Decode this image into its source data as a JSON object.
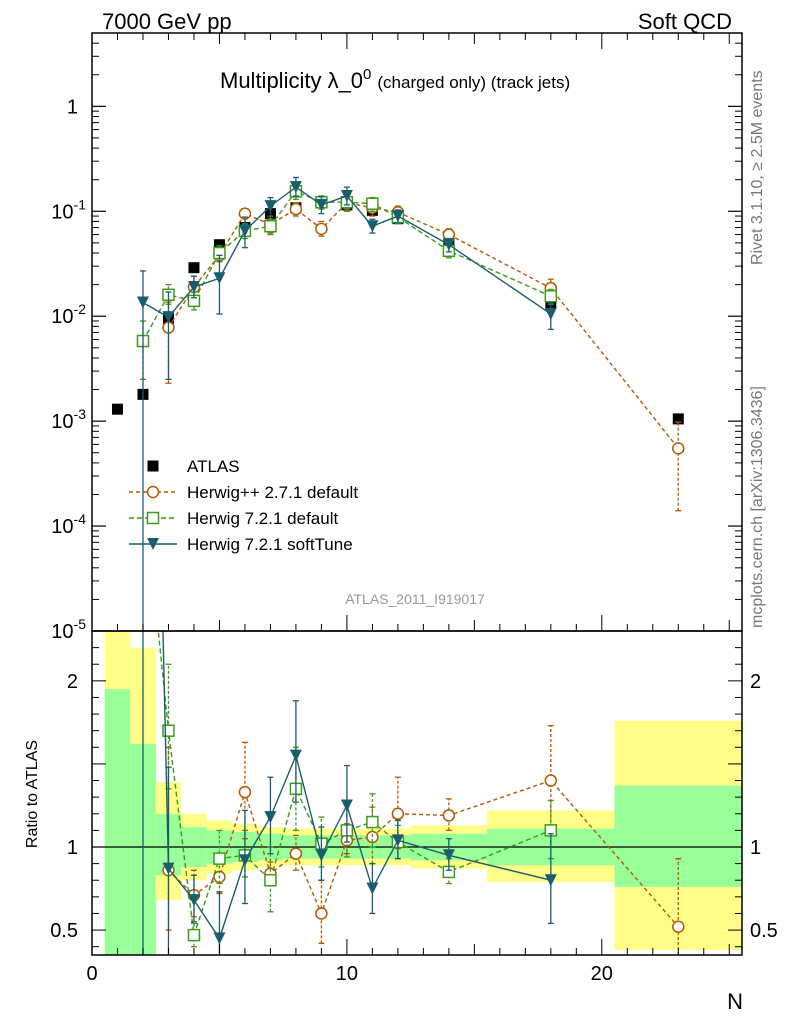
{
  "header": {
    "left": "7000 GeV pp",
    "right": "Soft QCD"
  },
  "title": {
    "main": "Multiplicity λ_0",
    "superscript": "0",
    "suffix": "(charged only) (track jets)"
  },
  "side_labels": {
    "rivet": "Rivet 3.1.10, ≥ 2.5M events",
    "mcplots": "mcplots.cern.ch [arXiv:1306.3436]"
  },
  "watermark": "ATLAS_2011_I919017",
  "x_axis_label": "N",
  "ratio_axis_label": "Ratio to ATLAS",
  "colors": {
    "data": "#000000",
    "herwigpp": "#b35900",
    "herwig721": "#3d9a1a",
    "softtune": "#1a5e6e",
    "band_inner": "#99ff99",
    "band_outer": "#ffff88"
  },
  "chart_data": {
    "type": "scatter",
    "main": {
      "ylog": true,
      "ylim": [
        1e-05,
        5
      ],
      "y_ticks": [
        "10^-5",
        "10^-4",
        "10^-3",
        "10^-2",
        "10^-1",
        "1"
      ],
      "xlim": [
        0,
        25.5
      ]
    },
    "ratio": {
      "ylim": [
        0.35,
        2.3
      ],
      "y_ticks": [
        "0.5",
        "1",
        "2"
      ]
    },
    "x_ticks": [
      "0",
      "10",
      "20"
    ],
    "series": [
      {
        "name": "ATLAS",
        "style": "data",
        "points": [
          {
            "x": 1,
            "y": 0.0013
          },
          {
            "x": 2,
            "y": 0.0018
          },
          {
            "x": 3,
            "y": 0.0095
          },
          {
            "x": 4,
            "y": 0.029
          },
          {
            "x": 5,
            "y": 0.048
          },
          {
            "x": 6,
            "y": 0.07
          },
          {
            "x": 7,
            "y": 0.095
          },
          {
            "x": 8,
            "y": 0.108
          },
          {
            "x": 9,
            "y": 0.12
          },
          {
            "x": 10,
            "y": 0.115
          },
          {
            "x": 11,
            "y": 0.102
          },
          {
            "x": 12,
            "y": 0.085
          },
          {
            "x": 14,
            "y": 0.05
          },
          {
            "x": 18,
            "y": 0.0135
          },
          {
            "x": 23,
            "y": 0.00105
          }
        ]
      },
      {
        "name": "Herwig++ 2.7.1 default",
        "style": "circle",
        "points": [
          {
            "x": 3,
            "y": 0.0078,
            "lo": 0.0023,
            "hi": 0.0136
          },
          {
            "x": 4,
            "y": 0.019,
            "lo": 0.015,
            "hi": 0.024
          },
          {
            "x": 5,
            "y": 0.038,
            "lo": 0.033,
            "hi": 0.045
          },
          {
            "x": 6,
            "y": 0.095,
            "lo": 0.085,
            "hi": 0.105
          },
          {
            "x": 7,
            "y": 0.075,
            "lo": 0.06,
            "hi": 0.09
          },
          {
            "x": 8,
            "y": 0.105,
            "lo": 0.09,
            "hi": 0.12
          },
          {
            "x": 9,
            "y": 0.068,
            "lo": 0.058,
            "hi": 0.08
          },
          {
            "x": 10,
            "y": 0.12,
            "lo": 0.1,
            "hi": 0.145
          },
          {
            "x": 11,
            "y": 0.108,
            "lo": 0.09,
            "hi": 0.125
          },
          {
            "x": 12,
            "y": 0.098,
            "lo": 0.085,
            "hi": 0.112
          },
          {
            "x": 14,
            "y": 0.06,
            "lo": 0.052,
            "hi": 0.068
          },
          {
            "x": 18,
            "y": 0.0185,
            "lo": 0.015,
            "hi": 0.0225
          },
          {
            "x": 23,
            "y": 0.00055,
            "lo": 0.00014,
            "hi": 0.00098
          }
        ],
        "ratio": [
          {
            "x": 3,
            "y": 0.86,
            "lo": 0.5,
            "hi": 1.6
          },
          {
            "x": 4,
            "y": 0.71,
            "lo": 0.58,
            "hi": 0.86
          },
          {
            "x": 5,
            "y": 0.82,
            "lo": 0.72,
            "hi": 0.95
          },
          {
            "x": 6,
            "y": 1.33,
            "lo": 1.05,
            "hi": 1.63
          },
          {
            "x": 7,
            "y": 0.84,
            "lo": 0.78,
            "hi": 0.91
          },
          {
            "x": 8,
            "y": 0.96,
            "lo": 0.86,
            "hi": 1.07
          },
          {
            "x": 9,
            "y": 0.6,
            "lo": 0.42,
            "hi": 0.8
          },
          {
            "x": 10,
            "y": 1.04,
            "lo": 0.96,
            "hi": 1.14
          },
          {
            "x": 11,
            "y": 1.06,
            "lo": 0.9,
            "hi": 1.24
          },
          {
            "x": 12,
            "y": 1.2,
            "lo": 0.99,
            "hi": 1.42
          },
          {
            "x": 14,
            "y": 1.19,
            "lo": 1.1,
            "hi": 1.29
          },
          {
            "x": 18,
            "y": 1.4,
            "lo": 1.12,
            "hi": 1.73
          },
          {
            "x": 23,
            "y": 0.52,
            "lo": 0.23,
            "hi": 0.93
          }
        ]
      },
      {
        "name": "Herwig 7.2.1 default",
        "style": "square",
        "points": [
          {
            "x": 2,
            "y": 0.0058,
            "lo": 0.0025,
            "hi": 0.009
          },
          {
            "x": 3,
            "y": 0.016,
            "lo": 0.013,
            "hi": 0.02
          },
          {
            "x": 4,
            "y": 0.014,
            "lo": 0.0115,
            "hi": 0.017
          },
          {
            "x": 5,
            "y": 0.04,
            "lo": 0.033,
            "hi": 0.047
          },
          {
            "x": 6,
            "y": 0.065,
            "lo": 0.055,
            "hi": 0.076
          },
          {
            "x": 7,
            "y": 0.072,
            "lo": 0.062,
            "hi": 0.084
          },
          {
            "x": 8,
            "y": 0.155,
            "lo": 0.13,
            "hi": 0.18
          },
          {
            "x": 9,
            "y": 0.122,
            "lo": 0.105,
            "hi": 0.14
          },
          {
            "x": 10,
            "y": 0.122,
            "lo": 0.105,
            "hi": 0.14
          },
          {
            "x": 11,
            "y": 0.118,
            "lo": 0.1,
            "hi": 0.135
          },
          {
            "x": 12,
            "y": 0.088,
            "lo": 0.076,
            "hi": 0.1
          },
          {
            "x": 14,
            "y": 0.042,
            "lo": 0.036,
            "hi": 0.048
          },
          {
            "x": 18,
            "y": 0.0155,
            "lo": 0.013,
            "hi": 0.018
          }
        ],
        "ratio": [
          {
            "x": 2,
            "y": 3.2,
            "lo": 2.5,
            "hi": 4.0
          },
          {
            "x": 3,
            "y": 1.7,
            "lo": 1.35,
            "hi": 2.1
          },
          {
            "x": 4,
            "y": 0.47,
            "lo": 0.4,
            "hi": 0.54
          },
          {
            "x": 5,
            "y": 0.93,
            "lo": 0.78,
            "hi": 1.1
          },
          {
            "x": 6,
            "y": 0.95,
            "lo": 0.82,
            "hi": 1.1
          },
          {
            "x": 7,
            "y": 0.8,
            "lo": 0.61,
            "hi": 1.0
          },
          {
            "x": 8,
            "y": 1.35,
            "lo": 1.1,
            "hi": 1.6
          },
          {
            "x": 9,
            "y": 1.02,
            "lo": 0.88,
            "hi": 1.18
          },
          {
            "x": 10,
            "y": 1.1,
            "lo": 0.94,
            "hi": 1.27
          },
          {
            "x": 11,
            "y": 1.15,
            "lo": 1.0,
            "hi": 1.32
          },
          {
            "x": 12,
            "y": 1.03,
            "lo": 0.93,
            "hi": 1.13
          },
          {
            "x": 14,
            "y": 0.85,
            "lo": 0.78,
            "hi": 0.93
          },
          {
            "x": 18,
            "y": 1.1,
            "lo": 0.93,
            "hi": 1.28
          }
        ]
      },
      {
        "name": "Herwig 7.2.1 softTune",
        "style": "triangle",
        "points": [
          {
            "x": 2,
            "y": 0.0135,
            "lo": 1e-06,
            "hi": 0.027
          },
          {
            "x": 3,
            "y": 0.0098,
            "lo": 0.0025,
            "hi": 0.017
          },
          {
            "x": 4,
            "y": 0.019,
            "lo": 0.015,
            "hi": 0.024
          },
          {
            "x": 5,
            "y": 0.023,
            "lo": 0.0105,
            "hi": 0.038
          },
          {
            "x": 6,
            "y": 0.065,
            "lo": 0.045,
            "hi": 0.088
          },
          {
            "x": 7,
            "y": 0.112,
            "lo": 0.09,
            "hi": 0.135
          },
          {
            "x": 8,
            "y": 0.17,
            "lo": 0.14,
            "hi": 0.21
          },
          {
            "x": 9,
            "y": 0.115,
            "lo": 0.095,
            "hi": 0.138
          },
          {
            "x": 10,
            "y": 0.14,
            "lo": 0.115,
            "hi": 0.17
          },
          {
            "x": 11,
            "y": 0.072,
            "lo": 0.062,
            "hi": 0.084
          },
          {
            "x": 12,
            "y": 0.09,
            "lo": 0.078,
            "hi": 0.103
          },
          {
            "x": 14,
            "y": 0.048,
            "lo": 0.041,
            "hi": 0.055
          },
          {
            "x": 18,
            "y": 0.0105,
            "lo": 0.0075,
            "hi": 0.0135
          }
        ],
        "ratio": [
          {
            "x": 2,
            "y": 7.5,
            "lo": 0.0,
            "hi": 15
          },
          {
            "x": 3,
            "y": 0.87,
            "lo": 0.28,
            "hi": 1.48
          },
          {
            "x": 4,
            "y": 0.68,
            "lo": 0.55,
            "hi": 0.83
          },
          {
            "x": 5,
            "y": 0.45,
            "lo": 0.22,
            "hi": 0.73
          },
          {
            "x": 6,
            "y": 0.92,
            "lo": 0.66,
            "hi": 1.22
          },
          {
            "x": 7,
            "y": 1.18,
            "lo": 0.96,
            "hi": 1.42
          },
          {
            "x": 8,
            "y": 1.55,
            "lo": 1.27,
            "hi": 1.88
          },
          {
            "x": 9,
            "y": 0.95,
            "lo": 0.8,
            "hi": 1.12
          },
          {
            "x": 10,
            "y": 1.25,
            "lo": 1.03,
            "hi": 1.49
          },
          {
            "x": 11,
            "y": 0.75,
            "lo": 0.6,
            "hi": 0.9
          },
          {
            "x": 12,
            "y": 1.04,
            "lo": 0.93,
            "hi": 1.16
          },
          {
            "x": 14,
            "y": 0.95,
            "lo": 0.86,
            "hi": 1.05
          },
          {
            "x": 18,
            "y": 0.8,
            "lo": 0.54,
            "hi": 1.08
          }
        ]
      }
    ],
    "uncertainty_bands": [
      {
        "x0": 0.5,
        "x1": 1.5,
        "inner": [
          0.0,
          1.95
        ],
        "outer": [
          0.0,
          2.4
        ]
      },
      {
        "x0": 1.5,
        "x1": 2.5,
        "inner": [
          0.0,
          1.62
        ],
        "outer": [
          0.0,
          2.2
        ]
      },
      {
        "x0": 2.5,
        "x1": 3.5,
        "inner": [
          0.83,
          1.2
        ],
        "outer": [
          0.68,
          1.39
        ]
      },
      {
        "x0": 3.5,
        "x1": 4.5,
        "inner": [
          0.88,
          1.12
        ],
        "outer": [
          0.8,
          1.2
        ]
      },
      {
        "x0": 4.5,
        "x1": 5.5,
        "inner": [
          0.9,
          1.1
        ],
        "outer": [
          0.84,
          1.16
        ]
      },
      {
        "x0": 5.5,
        "x1": 6.5,
        "inner": [
          0.91,
          1.09
        ],
        "outer": [
          0.86,
          1.14
        ]
      },
      {
        "x0": 6.5,
        "x1": 7.5,
        "inner": [
          0.92,
          1.08
        ],
        "outer": [
          0.88,
          1.12
        ]
      },
      {
        "x0": 7.5,
        "x1": 8.5,
        "inner": [
          0.93,
          1.07
        ],
        "outer": [
          0.89,
          1.11
        ]
      },
      {
        "x0": 8.5,
        "x1": 9.5,
        "inner": [
          0.93,
          1.07
        ],
        "outer": [
          0.89,
          1.11
        ]
      },
      {
        "x0": 9.5,
        "x1": 10.5,
        "inner": [
          0.93,
          1.07
        ],
        "outer": [
          0.89,
          1.11
        ]
      },
      {
        "x0": 10.5,
        "x1": 11.5,
        "inner": [
          0.93,
          1.07
        ],
        "outer": [
          0.89,
          1.11
        ]
      },
      {
        "x0": 11.5,
        "x1": 12.5,
        "inner": [
          0.93,
          1.07
        ],
        "outer": [
          0.89,
          1.11
        ]
      },
      {
        "x0": 12.5,
        "x1": 15.5,
        "inner": [
          0.92,
          1.08
        ],
        "outer": [
          0.87,
          1.13
        ]
      },
      {
        "x0": 15.5,
        "x1": 20.5,
        "inner": [
          0.89,
          1.11
        ],
        "outer": [
          0.79,
          1.22
        ]
      },
      {
        "x0": 20.5,
        "x1": 25.5,
        "inner": [
          0.76,
          1.37
        ],
        "outer": [
          0.38,
          1.76
        ]
      }
    ]
  }
}
